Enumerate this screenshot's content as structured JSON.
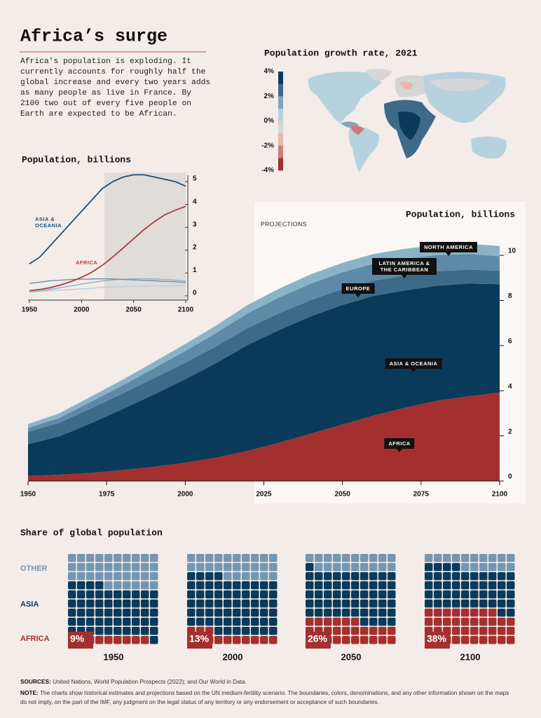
{
  "title": "Africa’s surge",
  "intro": "Africa's population is exploding. It currently accounts for roughly half the global increase and every two years adds as many people as live in France. By 2100 two out of every five people on Earth are expected to be African.",
  "chart_data": [
    {
      "type": "map",
      "title": "Population growth rate, 2021",
      "clim": [
        -4,
        4
      ],
      "colors": [
        "#0a3a5a",
        "#3e6a8a",
        "#7ea6bf",
        "#b7d2df",
        "#d6d6d6",
        "#e7b6b0",
        "#cf7a72",
        "#a3302f"
      ],
      "ticks": [
        {
          "value": 4,
          "label": "4%"
        },
        {
          "value": 2,
          "label": "2%"
        },
        {
          "value": 0,
          "label": "0%"
        },
        {
          "value": -2,
          "label": "-2%"
        },
        {
          "value": -4,
          "label": "-4%"
        }
      ]
    },
    {
      "type": "line",
      "title": "Population, billions",
      "x": [
        1950,
        1960,
        1970,
        1980,
        1990,
        2000,
        2010,
        2020,
        2030,
        2040,
        2050,
        2060,
        2070,
        2080,
        2090,
        2100
      ],
      "xlim": [
        1950,
        2100
      ],
      "xticks": [
        1950,
        2000,
        2050,
        2100
      ],
      "ylim": [
        0,
        5.4
      ],
      "yticks": [
        0,
        1,
        2,
        3,
        4,
        5
      ],
      "shade_from": 2022,
      "series": [
        {
          "name": "ASIA & OCEANIA",
          "color": "#1f4e73",
          "values": [
            1.4,
            1.7,
            2.2,
            2.7,
            3.2,
            3.7,
            4.2,
            4.7,
            5.0,
            5.2,
            5.3,
            5.3,
            5.2,
            5.1,
            5.0,
            4.8
          ]
        },
        {
          "name": "AFRICA",
          "color": "#b03a36",
          "values": [
            0.23,
            0.28,
            0.36,
            0.48,
            0.63,
            0.81,
            1.04,
            1.34,
            1.7,
            2.1,
            2.5,
            2.9,
            3.25,
            3.55,
            3.75,
            3.92
          ]
        },
        {
          "color": "#6f8fa8",
          "values": [
            0.55,
            0.6,
            0.66,
            0.69,
            0.72,
            0.73,
            0.74,
            0.75,
            0.74,
            0.72,
            0.7,
            0.68,
            0.66,
            0.64,
            0.62,
            0.59
          ]
        },
        {
          "color": "#8fb1c6",
          "values": [
            0.17,
            0.22,
            0.29,
            0.36,
            0.44,
            0.52,
            0.59,
            0.65,
            0.7,
            0.73,
            0.75,
            0.75,
            0.74,
            0.72,
            0.69,
            0.65
          ]
        },
        {
          "color": "#b6cfdc",
          "values": [
            0.17,
            0.2,
            0.23,
            0.25,
            0.28,
            0.31,
            0.34,
            0.37,
            0.39,
            0.41,
            0.42,
            0.43,
            0.44,
            0.44,
            0.45,
            0.45
          ]
        }
      ]
    },
    {
      "type": "stacked_area",
      "title": "Population, billions",
      "annotation": "PROJECTIONS",
      "x": [
        1950,
        1960,
        1970,
        1980,
        1990,
        2000,
        2010,
        2020,
        2030,
        2040,
        2050,
        2060,
        2070,
        2080,
        2090,
        2100
      ],
      "xlim": [
        1950,
        2100
      ],
      "xticks": [
        1950,
        1975,
        2000,
        2025,
        2050,
        2075,
        2100
      ],
      "ylim": [
        0,
        10.5
      ],
      "yticks": [
        0,
        2,
        4,
        6,
        8,
        10
      ],
      "shade_from": 2022,
      "series": [
        {
          "name": "AFRICA",
          "color": "#a3302f",
          "values": [
            0.23,
            0.28,
            0.36,
            0.48,
            0.63,
            0.81,
            1.04,
            1.34,
            1.7,
            2.1,
            2.5,
            2.9,
            3.25,
            3.55,
            3.75,
            3.92
          ]
        },
        {
          "name": "ASIA & OCEANIA",
          "color": "#0a3a5a",
          "values": [
            1.4,
            1.7,
            2.2,
            2.7,
            3.2,
            3.7,
            4.2,
            4.7,
            5.0,
            5.2,
            5.3,
            5.3,
            5.2,
            5.1,
            5.0,
            4.8
          ]
        },
        {
          "name": "EUROPE",
          "color": "#3e6a8a",
          "values": [
            0.55,
            0.6,
            0.66,
            0.69,
            0.72,
            0.73,
            0.74,
            0.75,
            0.74,
            0.72,
            0.7,
            0.68,
            0.66,
            0.64,
            0.62,
            0.59
          ]
        },
        {
          "name": "LATIN AMERICA & THE CARIBBEAN",
          "color": "#5e8aa8",
          "values": [
            0.17,
            0.22,
            0.29,
            0.36,
            0.44,
            0.52,
            0.59,
            0.65,
            0.7,
            0.73,
            0.75,
            0.75,
            0.74,
            0.72,
            0.69,
            0.65
          ]
        },
        {
          "name": "NORTH AMERICA",
          "color": "#8ab3c8",
          "values": [
            0.17,
            0.2,
            0.23,
            0.25,
            0.28,
            0.31,
            0.34,
            0.37,
            0.39,
            0.41,
            0.42,
            0.43,
            0.44,
            0.44,
            0.45,
            0.45
          ]
        }
      ]
    },
    {
      "type": "waffle",
      "title": "Share of global population",
      "categories": [
        "1950",
        "2000",
        "2050",
        "2100"
      ],
      "series": [
        {
          "name": "OTHER",
          "color": "#7396b1",
          "values": [
            36,
            26,
            19,
            16
          ]
        },
        {
          "name": "ASIA",
          "color": "#0a3a5a",
          "values": [
            55,
            61,
            55,
            46
          ]
        },
        {
          "name": "AFRICA",
          "color": "#a3302f",
          "values": [
            9,
            13,
            26,
            38
          ],
          "value_labels": [
            "9%",
            "13%",
            "26%",
            "38%"
          ]
        }
      ]
    }
  ],
  "sources": {
    "label": "SOURCES:",
    "text": "United Nations, World Population Prospects (2022); and Our World in Data."
  },
  "note": {
    "label": "NOTE:",
    "text": "The charts show historical estimates and projections based on the UN medium-fertility scenario. The boundaries, colors, denominations, and any other information shown on the maps do not imply, on the part of the IMF, any judgment on the legal status of any territory or any endorsement or acceptance of such boundaries."
  }
}
